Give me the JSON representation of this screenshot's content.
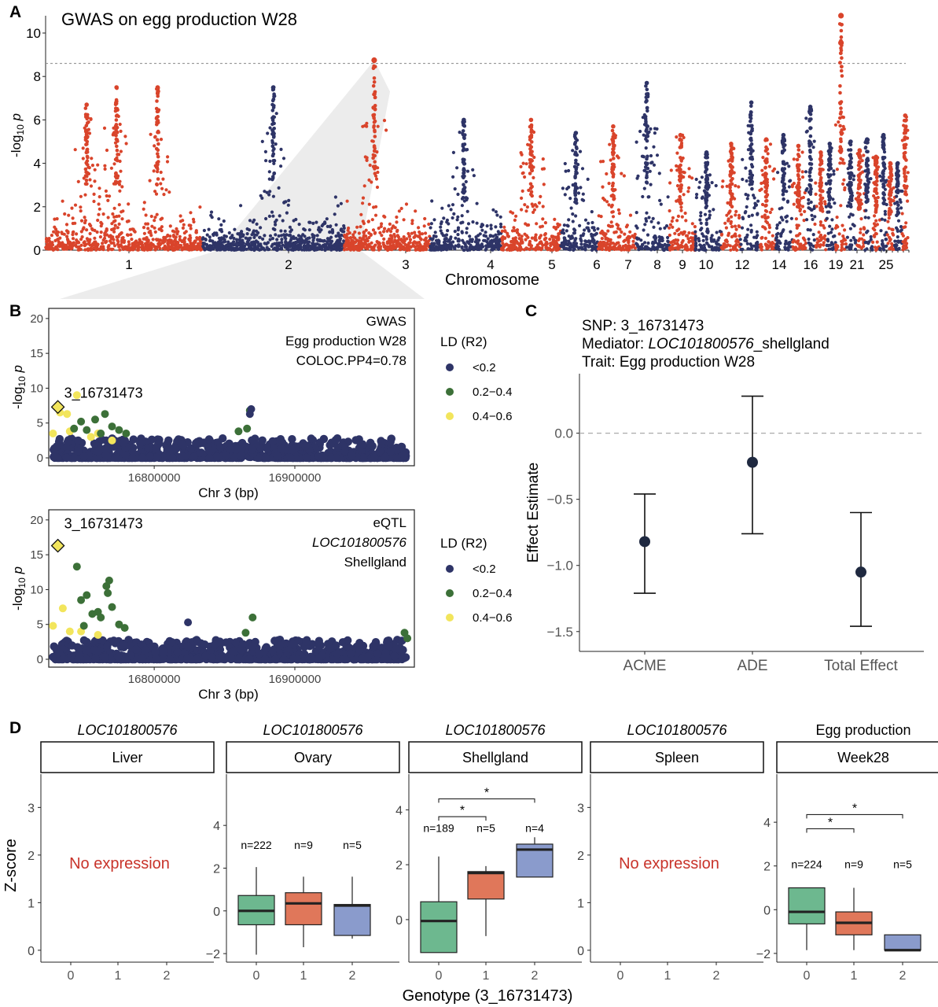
{
  "colors": {
    "red": "#d9442b",
    "navy": "#2e3467",
    "green": "#3c7038",
    "yellow": "#f2e55c",
    "teal": "#6db88f",
    "orange": "#e0775a",
    "blue": "#8a9bcc",
    "threshold": "#888888",
    "axis": "#222222"
  },
  "panels": {
    "A": {
      "letter": "A"
    },
    "B": {
      "letter": "B"
    },
    "C": {
      "letter": "C"
    },
    "D": {
      "letter": "D"
    }
  },
  "chart_data": [
    {
      "id": "A",
      "type": "scatter",
      "subtype": "manhattan",
      "title": "GWAS on egg production W28",
      "xlabel": "Chromosome",
      "ylabel": "-log10 p",
      "ylim": [
        0,
        11
      ],
      "yticks": [
        0,
        2,
        4,
        6,
        8,
        10
      ],
      "threshold": 8.6,
      "highlight_chromosome": "3",
      "chromosome_tick_labels": [
        "1",
        "2",
        "3",
        "4",
        "5",
        "6",
        "7",
        "8",
        "9",
        "10",
        "12",
        "14",
        "16",
        "19",
        "21",
        "25"
      ],
      "chromosomes": [
        {
          "chr": "1",
          "start": 0,
          "end": 210,
          "color": "red",
          "peaks": [
            {
              "pos": 55,
              "max": 6.7
            },
            {
              "pos": 95,
              "max": 7.5
            },
            {
              "pos": 150,
              "max": 7.5
            }
          ]
        },
        {
          "chr": "2",
          "start": 210,
          "end": 400,
          "color": "navy",
          "peaks": [
            {
              "pos": 305,
              "max": 7.5
            }
          ]
        },
        {
          "chr": "3",
          "start": 400,
          "end": 515,
          "color": "red",
          "peaks": [
            {
              "pos": 440,
              "max": 8.75
            }
          ]
        },
        {
          "chr": "4",
          "start": 515,
          "end": 610,
          "color": "navy",
          "peaks": [
            {
              "pos": 560,
              "max": 6.0
            }
          ]
        },
        {
          "chr": "5",
          "start": 610,
          "end": 690,
          "color": "red",
          "peaks": [
            {
              "pos": 650,
              "max": 6.0
            }
          ]
        },
        {
          "chr": "6",
          "start": 690,
          "end": 740,
          "color": "navy",
          "peaks": [
            {
              "pos": 710,
              "max": 5.4
            }
          ]
        },
        {
          "chr": "7",
          "start": 740,
          "end": 790,
          "color": "red",
          "peaks": [
            {
              "pos": 760,
              "max": 5.7
            }
          ]
        },
        {
          "chr": "8",
          "start": 790,
          "end": 835,
          "color": "navy",
          "peaks": [
            {
              "pos": 805,
              "max": 7.7
            }
          ]
        },
        {
          "chr": "9",
          "start": 835,
          "end": 870,
          "color": "red",
          "peaks": [
            {
              "pos": 850,
              "max": 5.3
            }
          ]
        },
        {
          "chr": "10",
          "start": 870,
          "end": 905,
          "color": "navy",
          "peaks": [
            {
              "pos": 885,
              "max": 4.5
            }
          ]
        },
        {
          "chr": "11",
          "start": 905,
          "end": 930,
          "color": "red",
          "peaks": [
            {
              "pos": 918,
              "max": 4.9
            }
          ]
        },
        {
          "chr": "12",
          "start": 930,
          "end": 955,
          "color": "navy",
          "peaks": [
            {
              "pos": 945,
              "max": 6.8
            }
          ]
        },
        {
          "chr": "13",
          "start": 955,
          "end": 978,
          "color": "red",
          "peaks": [
            {
              "pos": 965,
              "max": 5.1
            }
          ]
        },
        {
          "chr": "14",
          "start": 978,
          "end": 1000,
          "color": "navy",
          "peaks": [
            {
              "pos": 988,
              "max": 5.3
            }
          ]
        },
        {
          "chr": "15",
          "start": 1000,
          "end": 1018,
          "color": "red",
          "peaks": [
            {
              "pos": 1008,
              "max": 4.8
            }
          ]
        },
        {
          "chr": "16",
          "start": 1018,
          "end": 1030,
          "color": "navy",
          "peaks": [
            {
              "pos": 1024,
              "max": 6.6
            }
          ]
        },
        {
          "chr": "17",
          "start": 1030,
          "end": 1045,
          "color": "red",
          "peaks": [
            {
              "pos": 1038,
              "max": 4.5
            }
          ]
        },
        {
          "chr": "18",
          "start": 1045,
          "end": 1058,
          "color": "navy",
          "peaks": [
            {
              "pos": 1050,
              "max": 4.9
            }
          ]
        },
        {
          "chr": "19",
          "start": 1058,
          "end": 1072,
          "color": "red",
          "peaks": [
            {
              "pos": 1065,
              "max": 10.8
            }
          ]
        },
        {
          "chr": "20",
          "start": 1072,
          "end": 1085,
          "color": "navy",
          "peaks": [
            {
              "pos": 1078,
              "max": 5.0
            }
          ]
        },
        {
          "chr": "21",
          "start": 1085,
          "end": 1097,
          "color": "red",
          "peaks": [
            {
              "pos": 1090,
              "max": 4.6
            }
          ]
        },
        {
          "chr": "22",
          "start": 1097,
          "end": 1107,
          "color": "navy",
          "peaks": [
            {
              "pos": 1100,
              "max": 5.1
            }
          ]
        },
        {
          "chr": "23",
          "start": 1107,
          "end": 1117,
          "color": "red",
          "peaks": [
            {
              "pos": 1112,
              "max": 4.3
            }
          ]
        },
        {
          "chr": "24",
          "start": 1117,
          "end": 1127,
          "color": "navy",
          "peaks": [
            {
              "pos": 1122,
              "max": 5.3
            }
          ]
        },
        {
          "chr": "25",
          "start": 1127,
          "end": 1137,
          "color": "red",
          "peaks": [
            {
              "pos": 1131,
              "max": 4.0
            }
          ]
        },
        {
          "chr": "26",
          "start": 1137,
          "end": 1147,
          "color": "navy",
          "peaks": [
            {
              "pos": 1141,
              "max": 4.0
            }
          ]
        },
        {
          "chr": "27",
          "start": 1147,
          "end": 1156,
          "color": "red",
          "peaks": [
            {
              "pos": 1151,
              "max": 6.2
            }
          ]
        }
      ],
      "top_points": [
        {
          "chr": "19",
          "y": 10.8
        },
        {
          "chr": "19",
          "y": 9.55
        },
        {
          "chr": "3",
          "y": 8.75
        }
      ]
    },
    {
      "id": "B-top",
      "type": "scatter",
      "subtype": "locuszoom",
      "annotation_lines": [
        "GWAS",
        "Egg production W28",
        "COLOC.PP4=0.78"
      ],
      "lead_snp": "3_16731473",
      "lead_y": 7.3,
      "xlabel": "Chr 3 (bp)",
      "ylabel": "-log10 p",
      "xlim": [
        16725000,
        16985000
      ],
      "xticks": [
        16800000,
        16900000
      ],
      "ylim": [
        0,
        21
      ],
      "yticks": [
        0,
        5,
        10,
        15,
        20
      ],
      "legend": {
        "title": "LD (R2)",
        "items": [
          {
            "label": "<0.2",
            "color": "navy"
          },
          {
            "label": "0.2−0.4",
            "color": "green"
          },
          {
            "label": "0.4−0.6",
            "color": "yellow"
          }
        ]
      },
      "highlights": [
        {
          "x": 16733000,
          "y": 6.5,
          "ld": "yellow"
        },
        {
          "x": 16738000,
          "y": 6.3,
          "ld": "yellow"
        },
        {
          "x": 16745000,
          "y": 9.0,
          "ld": "yellow"
        },
        {
          "x": 16740000,
          "y": 3.8,
          "ld": "yellow"
        },
        {
          "x": 16760000,
          "y": 3.5,
          "ld": "yellow"
        },
        {
          "x": 16755000,
          "y": 3.0,
          "ld": "yellow"
        },
        {
          "x": 16770000,
          "y": 2.5,
          "ld": "yellow"
        },
        {
          "x": 16728000,
          "y": 3.5,
          "ld": "yellow"
        },
        {
          "x": 16748000,
          "y": 5.2,
          "ld": "green"
        },
        {
          "x": 16765000,
          "y": 6.3,
          "ld": "green"
        },
        {
          "x": 16758000,
          "y": 5.5,
          "ld": "green"
        },
        {
          "x": 16770000,
          "y": 4.5,
          "ld": "green"
        },
        {
          "x": 16752000,
          "y": 4.0,
          "ld": "green"
        },
        {
          "x": 16775000,
          "y": 4.0,
          "ld": "green"
        },
        {
          "x": 16780000,
          "y": 3.5,
          "ld": "green"
        },
        {
          "x": 16762000,
          "y": 3.5,
          "ld": "green"
        },
        {
          "x": 16743000,
          "y": 4.2,
          "ld": "green"
        },
        {
          "x": 16868000,
          "y": 6.8,
          "ld": "green"
        },
        {
          "x": 16866000,
          "y": 4.2,
          "ld": "green"
        },
        {
          "x": 16860000,
          "y": 3.8,
          "ld": "green"
        },
        {
          "x": 16868000,
          "y": 6.3,
          "ld": "navy"
        },
        {
          "x": 16869000,
          "y": 7.0,
          "ld": "navy"
        }
      ]
    },
    {
      "id": "B-bottom",
      "type": "scatter",
      "subtype": "locuszoom",
      "annotation_lines": [
        "eQTL",
        "LOC101800576",
        "Shellgland"
      ],
      "lead_snp": "3_16731473",
      "lead_y": 16.3,
      "xlabel": "Chr 3 (bp)",
      "ylabel": "-log10 p",
      "xlim": [
        16725000,
        16985000
      ],
      "xticks": [
        16800000,
        16900000
      ],
      "ylim": [
        0,
        21
      ],
      "yticks": [
        0,
        5,
        10,
        15,
        20
      ],
      "legend": {
        "title": "LD (R2)",
        "items": [
          {
            "label": "<0.2",
            "color": "navy"
          },
          {
            "label": "0.2−0.4",
            "color": "green"
          },
          {
            "label": "0.4−0.6",
            "color": "yellow"
          }
        ]
      },
      "highlights": [
        {
          "x": 16735000,
          "y": 7.3,
          "ld": "yellow"
        },
        {
          "x": 16728000,
          "y": 4.8,
          "ld": "yellow"
        },
        {
          "x": 16740000,
          "y": 4.0,
          "ld": "yellow"
        },
        {
          "x": 16748000,
          "y": 4.0,
          "ld": "yellow"
        },
        {
          "x": 16760000,
          "y": 3.5,
          "ld": "yellow"
        },
        {
          "x": 16745000,
          "y": 13.3,
          "ld": "green"
        },
        {
          "x": 16748000,
          "y": 8.5,
          "ld": "green"
        },
        {
          "x": 16752000,
          "y": 9.2,
          "ld": "green"
        },
        {
          "x": 16766000,
          "y": 10.5,
          "ld": "green"
        },
        {
          "x": 16768000,
          "y": 11.3,
          "ld": "green"
        },
        {
          "x": 16767000,
          "y": 9.5,
          "ld": "green"
        },
        {
          "x": 16770000,
          "y": 7.5,
          "ld": "green"
        },
        {
          "x": 16760000,
          "y": 6.8,
          "ld": "green"
        },
        {
          "x": 16756000,
          "y": 6.5,
          "ld": "green"
        },
        {
          "x": 16762000,
          "y": 6.0,
          "ld": "green"
        },
        {
          "x": 16775000,
          "y": 5.0,
          "ld": "green"
        },
        {
          "x": 16779000,
          "y": 4.5,
          "ld": "green"
        },
        {
          "x": 16750000,
          "y": 4.8,
          "ld": "green"
        },
        {
          "x": 16870000,
          "y": 6.0,
          "ld": "green"
        },
        {
          "x": 16865000,
          "y": 3.8,
          "ld": "green"
        },
        {
          "x": 16978000,
          "y": 3.8,
          "ld": "green"
        },
        {
          "x": 16980000,
          "y": 3.0,
          "ld": "green"
        },
        {
          "x": 16824000,
          "y": 5.3,
          "ld": "navy"
        }
      ]
    },
    {
      "id": "C",
      "type": "scatter",
      "subtype": "errorbar",
      "title_lines": [
        {
          "prefix": "SNP: 3_16731473",
          "italic": "",
          "suffix": ""
        },
        {
          "prefix": "Mediator: ",
          "italic": "LOC101800576",
          "suffix": "_shellgland"
        },
        {
          "prefix": "Trait: Egg production W28",
          "italic": "",
          "suffix": ""
        }
      ],
      "ylabel": "Effect Estimate",
      "ylim": [
        -1.65,
        0.45
      ],
      "yticks": [
        -1.5,
        -1.0,
        -0.5,
        0.0
      ],
      "ytick_labels": [
        "−1.5",
        "−1.0",
        "−0.5",
        "0.0"
      ],
      "categories": [
        "ACME",
        "ADE",
        "Total Effect"
      ],
      "estimates": [
        -0.82,
        -0.22,
        -1.05
      ],
      "lower": [
        -1.21,
        -0.76,
        -1.46
      ],
      "upper": [
        -0.46,
        0.28,
        -0.6
      ],
      "reference_line": 0
    },
    {
      "id": "D",
      "type": "box",
      "xlabel": "Genotype (3_16731473)",
      "ylabel": "Z-score",
      "categories": [
        "0",
        "1",
        "2"
      ],
      "facets": [
        {
          "title": "LOC101800576",
          "title_italic": true,
          "strip": "Liver",
          "ylim": [
            -0.25,
            3.7
          ],
          "yticks": [
            0,
            1,
            2,
            3
          ],
          "message": "No expression",
          "boxes": [],
          "counts": [],
          "signif": []
        },
        {
          "title": "LOC101800576",
          "title_italic": true,
          "strip": "Ovary",
          "ylim": [
            -2.4,
            6.4
          ],
          "yticks": [
            -2,
            0,
            2,
            4
          ],
          "boxes": [
            {
              "q1": -0.65,
              "median": 0.0,
              "q3": 0.72,
              "whislo": -2.05,
              "whishi": 2.05
            },
            {
              "q1": -0.65,
              "median": 0.35,
              "q3": 0.85,
              "whislo": -1.7,
              "whishi": 1.6
            },
            {
              "q1": -1.15,
              "median": 0.25,
              "q3": 0.3,
              "whislo": -1.3,
              "whishi": 1.6
            }
          ],
          "counts": [
            "n=222",
            "n=9",
            "n=5"
          ],
          "count_y": 2.9,
          "signif": []
        },
        {
          "title": "LOC101800576",
          "title_italic": true,
          "strip": "Shellgland",
          "ylim": [
            -1.55,
            5.3
          ],
          "yticks": [
            0,
            2,
            4
          ],
          "boxes": [
            {
              "q1": -1.2,
              "median": -0.05,
              "q3": 0.65,
              "whislo": -1.2,
              "whishi": 2.3
            },
            {
              "q1": 0.75,
              "median": 1.7,
              "q3": 1.75,
              "whislo": -0.6,
              "whishi": 1.95
            },
            {
              "q1": 1.55,
              "median": 2.55,
              "q3": 2.75,
              "whislo": 1.55,
              "whishi": 3.0
            }
          ],
          "counts": [
            "n=189",
            "n=5",
            "n=4"
          ],
          "count_y": 3.2,
          "signif": [
            {
              "from": 0,
              "to": 1,
              "y": 3.75,
              "label": "*"
            },
            {
              "from": 0,
              "to": 2,
              "y": 4.4,
              "label": "*"
            }
          ]
        },
        {
          "title": "LOC101800576",
          "title_italic": true,
          "strip": "Spleen",
          "ylim": [
            -0.25,
            3.7
          ],
          "yticks": [
            0,
            1,
            2,
            3
          ],
          "message": "No expression",
          "boxes": [],
          "counts": [],
          "signif": []
        },
        {
          "title": "Egg production",
          "title_italic": false,
          "strip": "Week28",
          "ylim": [
            -2.4,
            6.2
          ],
          "yticks": [
            -2,
            0,
            2,
            4
          ],
          "boxes": [
            {
              "q1": -0.65,
              "median": -0.1,
              "q3": 1.0,
              "whislo": -1.85,
              "whishi": 1.0
            },
            {
              "q1": -1.15,
              "median": -0.6,
              "q3": -0.1,
              "whislo": -1.85,
              "whishi": 1.0
            },
            {
              "q1": -1.85,
              "median": -1.85,
              "q3": -1.15,
              "whislo": -1.85,
              "whishi": -1.15
            }
          ],
          "counts": [
            "n=224",
            "n=9",
            "n=5"
          ],
          "count_y": 1.9,
          "signif": [
            {
              "from": 0,
              "to": 1,
              "y": 3.7,
              "label": "*"
            },
            {
              "from": 0,
              "to": 2,
              "y": 4.35,
              "label": "*"
            }
          ]
        }
      ]
    }
  ]
}
